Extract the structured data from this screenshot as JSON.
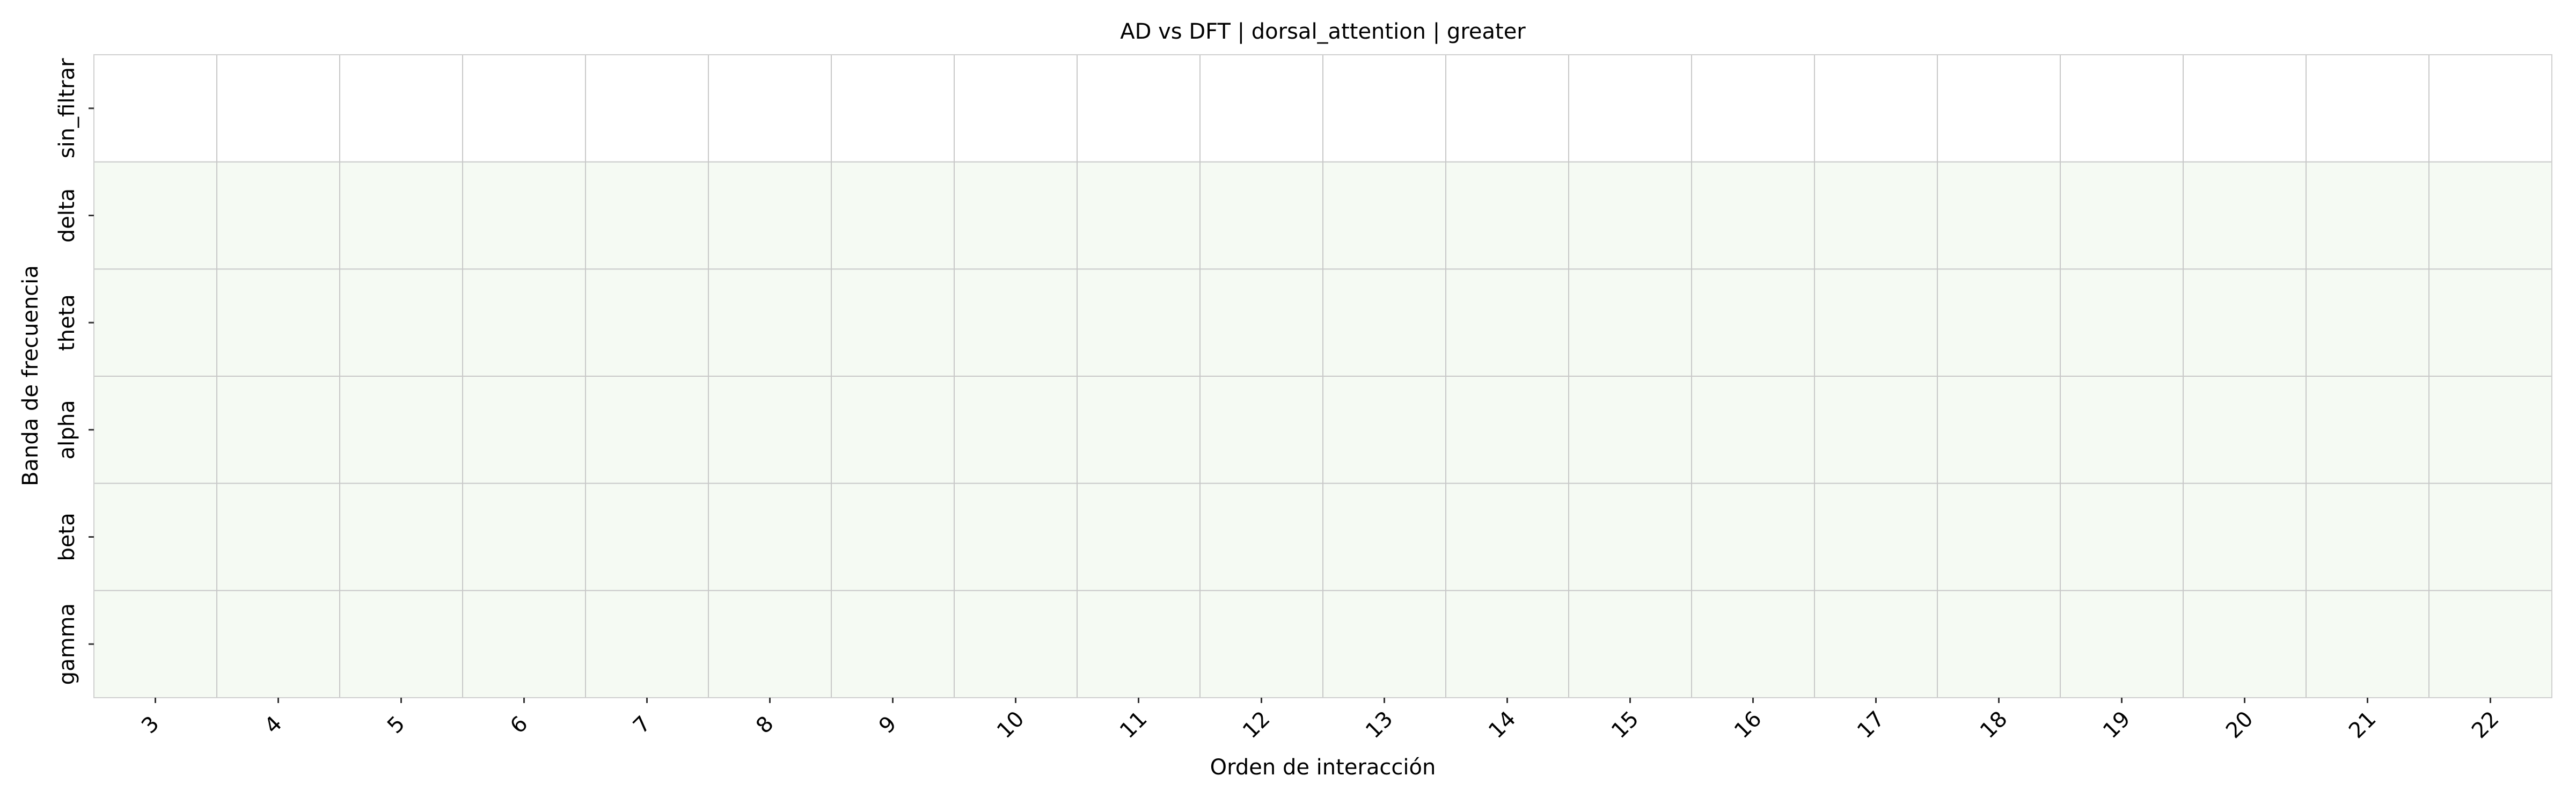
{
  "chart_data": {
    "type": "heatmap",
    "title": "AD vs DFT | dorsal_attention | greater",
    "xlabel": "Orden de interacción",
    "ylabel": "Banda de frecuencia",
    "x_categories": [
      "3",
      "4",
      "5",
      "6",
      "7",
      "8",
      "9",
      "10",
      "11",
      "12",
      "13",
      "14",
      "15",
      "16",
      "17",
      "18",
      "19",
      "20",
      "21",
      "22"
    ],
    "y_categories": [
      "sin_filtrar",
      "delta",
      "theta",
      "alpha",
      "beta",
      "gamma"
    ],
    "values": [
      [
        0,
        0,
        0,
        0,
        0,
        0,
        0,
        0,
        0,
        0,
        0,
        0,
        0,
        0,
        0,
        0,
        0,
        0,
        0,
        0
      ],
      [
        1,
        1,
        1,
        1,
        1,
        1,
        1,
        1,
        1,
        1,
        1,
        1,
        1,
        1,
        1,
        1,
        1,
        1,
        1,
        1
      ],
      [
        1,
        1,
        1,
        1,
        1,
        1,
        1,
        1,
        1,
        1,
        1,
        1,
        1,
        1,
        1,
        1,
        1,
        1,
        1,
        1
      ],
      [
        1,
        1,
        1,
        1,
        1,
        1,
        1,
        1,
        1,
        1,
        1,
        1,
        1,
        1,
        1,
        1,
        1,
        1,
        1,
        1
      ],
      [
        1,
        1,
        1,
        1,
        1,
        1,
        1,
        1,
        1,
        1,
        1,
        1,
        1,
        1,
        1,
        1,
        1,
        1,
        1,
        1
      ],
      [
        1,
        1,
        1,
        1,
        1,
        1,
        1,
        1,
        1,
        1,
        1,
        1,
        1,
        1,
        1,
        1,
        1,
        1,
        1,
        1
      ]
    ],
    "colors": {
      "low": "#ffffff",
      "high": "#f5faf3",
      "grid": "#c8c8c8",
      "frame": "#d0d0d0",
      "text": "#000000",
      "tick": "#333333"
    },
    "grid": true,
    "legend": "none"
  }
}
